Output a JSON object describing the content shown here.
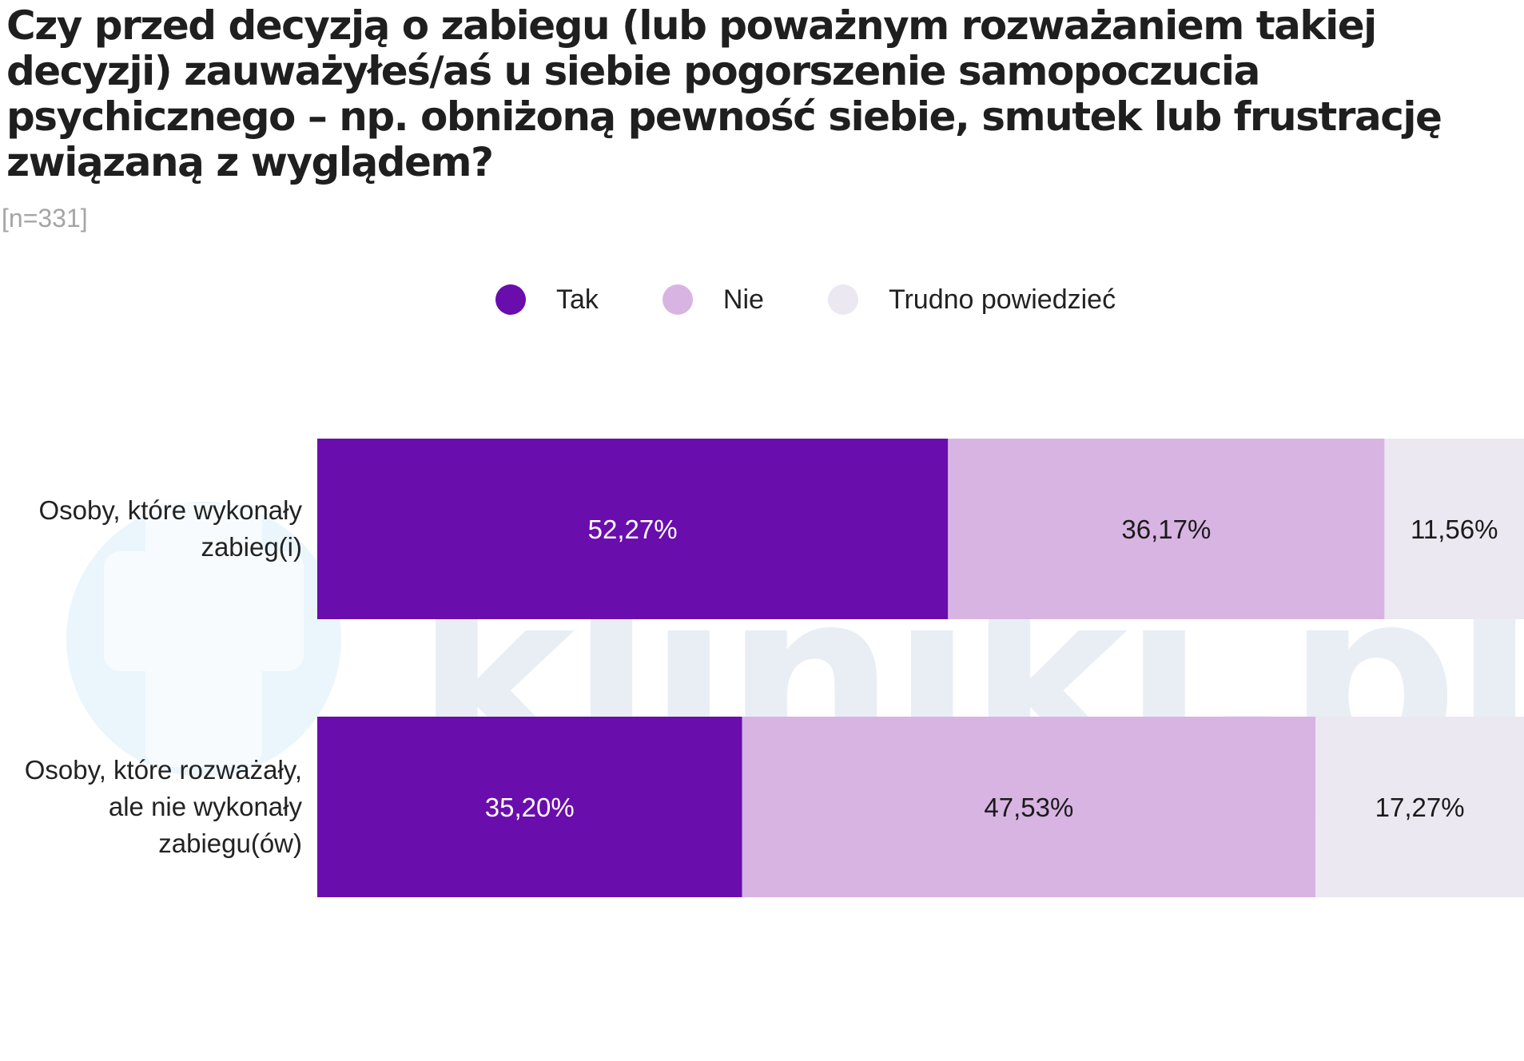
{
  "watermark": {
    "text": "kliniki.pl"
  },
  "chart_data": {
    "type": "bar",
    "orientation": "horizontal",
    "stacked": true,
    "title": "Czy przed decyzją o zabiegu (lub poważnym rozważaniem takiej decyzji) zauważyłeś/aś u siebie pogorszenie samopoczucia psychicznego – np. obniżoną pewność siebie, smutek lub frustrację związaną z wyglądem?",
    "subtitle": "[n=331]",
    "categories": [
      "Osoby, które wykonały zabieg(i)",
      "Osoby, które rozważały, ale nie wykonały zabiegu(ów)"
    ],
    "category_lines": [
      [
        "Osoby, które wykonały",
        "zabieg(i)"
      ],
      [
        "Osoby, które rozważały,",
        "ale nie wykonały",
        "zabiegu(ów)"
      ]
    ],
    "series": [
      {
        "name": "Tak",
        "color": "#6a0dad",
        "label_color": "#ffffff",
        "values": [
          52.27,
          35.2
        ],
        "labels": [
          "52,27%",
          "35,20%"
        ]
      },
      {
        "name": "Nie",
        "color": "#d8b4e2",
        "label_color": "#1a1a1a",
        "values": [
          36.17,
          47.53
        ],
        "labels": [
          "36,17%",
          "47,53%"
        ]
      },
      {
        "name": "Trudno powiedzieć",
        "color": "#ece8f2",
        "label_color": "#1a1a1a",
        "values": [
          11.56,
          17.27
        ],
        "labels": [
          "11,56%",
          "17,27%"
        ]
      }
    ],
    "xlim": [
      0,
      100
    ],
    "legend": "top",
    "grid": false
  }
}
